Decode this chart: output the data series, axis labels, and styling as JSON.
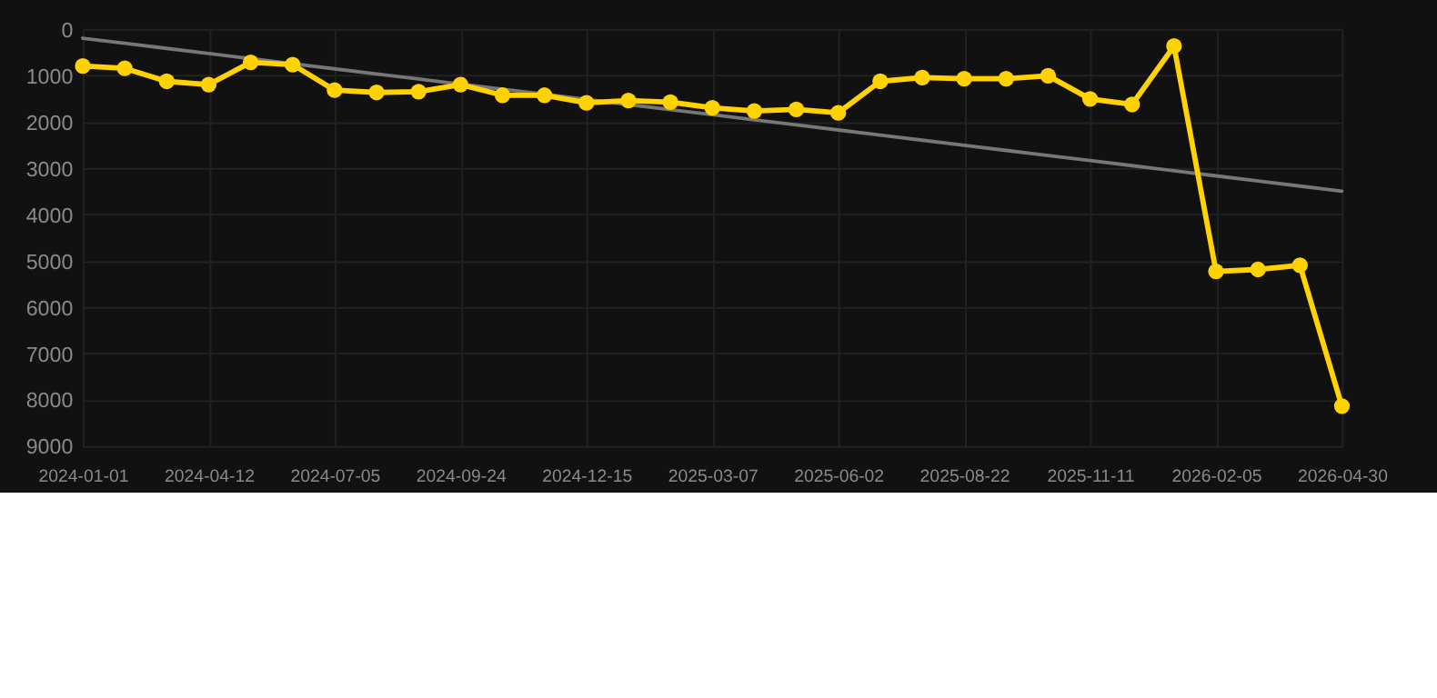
{
  "chart_data": {
    "type": "line",
    "categories": [
      "2024-01-01",
      null,
      null,
      "2024-04-12",
      null,
      null,
      "2024-07-05",
      null,
      null,
      "2024-09-24",
      null,
      null,
      "2024-12-15",
      null,
      null,
      "2025-03-07",
      null,
      null,
      "2025-06-02",
      null,
      null,
      "2025-08-22",
      null,
      null,
      "2025-11-11",
      null,
      null,
      "2026-02-05",
      null,
      null,
      "2026-04-30"
    ],
    "series": [
      {
        "color": "#ffd200",
        "marker": "circle",
        "values": [
          800,
          850,
          1130,
          1200,
          720,
          770,
          1320,
          1370,
          1355,
          1200,
          1430,
          1430,
          1595,
          1545,
          1580,
          1700,
          1770,
          1735,
          1810,
          1130,
          1050,
          1075,
          1075,
          1010,
          1510,
          1630,
          370,
          5230,
          5190,
          5100,
          8140
        ]
      },
      {
        "type": "line",
        "color": "#777777",
        "marker": "none",
        "values": [
          200,
          310,
          420,
          530,
          640,
          750,
          860,
          970,
          1080,
          1190,
          1300,
          1410,
          1520,
          1630,
          1740,
          1850,
          1960,
          2070,
          2180,
          2290,
          2400,
          2510,
          2620,
          2730,
          2840,
          2950,
          3060,
          3170,
          3280,
          3390,
          3500
        ]
      }
    ],
    "ylim": [
      9000,
      0
    ],
    "yticks": [
      0,
      1000,
      2000,
      3000,
      4000,
      5000,
      6000,
      7000,
      8000,
      9000
    ],
    "grid": true
  }
}
